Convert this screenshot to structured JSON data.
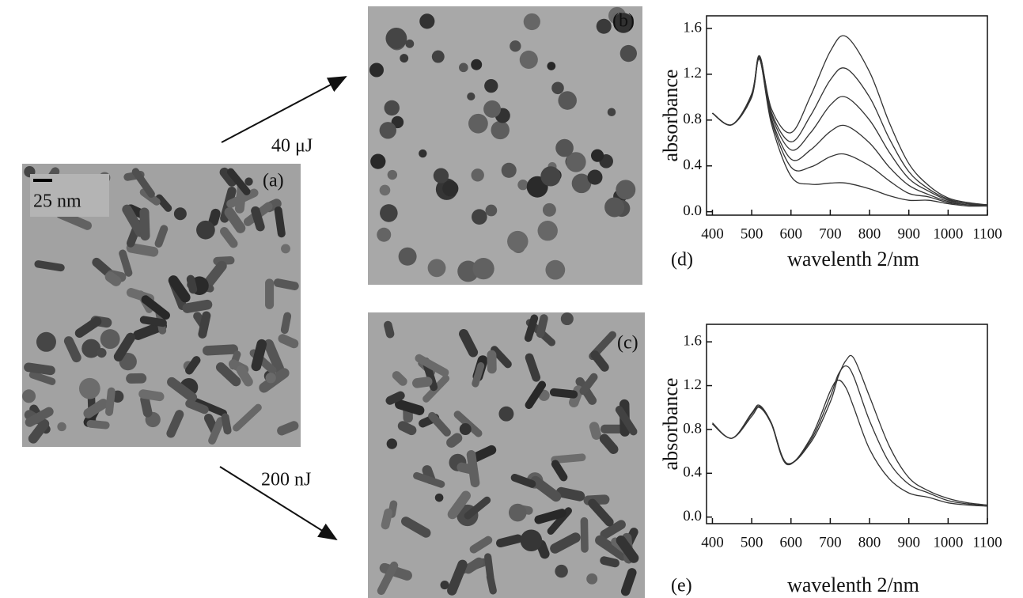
{
  "panels": {
    "a": {
      "label": "(a)",
      "scale_bar": "25 nm"
    },
    "b": {
      "label": "(b)"
    },
    "c": {
      "label": "(c)"
    }
  },
  "arrows": [
    {
      "label": "40 μJ"
    },
    {
      "label": "200 nJ"
    }
  ],
  "chart_data": [
    {
      "type": "line",
      "label": "(d)",
      "x_label": "wavelenth 2/nm",
      "y_label": "absorbance",
      "x": [
        400,
        450,
        500,
        520,
        550,
        600,
        650,
        700,
        740,
        800,
        850,
        900,
        950,
        1000,
        1050,
        1100
      ],
      "series": [
        {
          "color": "#333333",
          "values": [
            0.86,
            0.76,
            1.03,
            1.36,
            0.9,
            0.69,
            1.01,
            1.4,
            1.53,
            1.22,
            0.78,
            0.42,
            0.23,
            0.12,
            0.08,
            0.06
          ]
        },
        {
          "color": "#333333",
          "values": [
            0.86,
            0.76,
            1.02,
            1.36,
            0.87,
            0.61,
            0.84,
            1.15,
            1.25,
            1.0,
            0.64,
            0.35,
            0.2,
            0.11,
            0.07,
            0.06
          ]
        },
        {
          "color": "#333333",
          "values": [
            0.86,
            0.76,
            1.02,
            1.35,
            0.85,
            0.54,
            0.69,
            0.93,
            1.0,
            0.8,
            0.52,
            0.29,
            0.18,
            0.1,
            0.07,
            0.06
          ]
        },
        {
          "color": "#333333",
          "values": [
            0.86,
            0.76,
            1.01,
            1.34,
            0.82,
            0.46,
            0.54,
            0.7,
            0.75,
            0.6,
            0.39,
            0.23,
            0.15,
            0.09,
            0.06,
            0.06
          ]
        },
        {
          "color": "#333333",
          "values": [
            0.86,
            0.76,
            1.01,
            1.33,
            0.8,
            0.39,
            0.39,
            0.48,
            0.5,
            0.4,
            0.27,
            0.16,
            0.13,
            0.08,
            0.06,
            0.05
          ]
        },
        {
          "color": "#333333",
          "values": [
            0.86,
            0.76,
            1.0,
            1.33,
            0.77,
            0.31,
            0.24,
            0.25,
            0.25,
            0.2,
            0.14,
            0.1,
            0.1,
            0.07,
            0.05,
            0.05
          ]
        }
      ],
      "xlim": [
        385,
        1100
      ],
      "ylim": [
        -0.03,
        1.71
      ],
      "xticks": [
        400,
        500,
        600,
        700,
        800,
        900,
        1000,
        1100
      ],
      "yticks": [
        {
          "value": 0,
          "label": "0.0"
        },
        0.4,
        0.8,
        1.2,
        1.6
      ]
    },
    {
      "type": "line",
      "label": "(e)",
      "x_label": "wavelenth 2/nm",
      "y_label": "absorbance",
      "x": [
        400,
        450,
        500,
        520,
        550,
        590,
        650,
        700,
        720,
        740,
        760,
        800,
        850,
        900,
        950,
        1000,
        1050,
        1100
      ],
      "series": [
        {
          "color": "#333333",
          "values": [
            0.85,
            0.72,
            0.92,
            1.0,
            0.85,
            0.48,
            0.72,
            1.15,
            1.25,
            1.18,
            1.0,
            0.62,
            0.35,
            0.22,
            0.18,
            0.13,
            0.11,
            0.1
          ]
        },
        {
          "color": "#333333",
          "values": [
            0.85,
            0.72,
            0.94,
            1.01,
            0.86,
            0.49,
            0.7,
            1.1,
            1.3,
            1.38,
            1.28,
            0.88,
            0.5,
            0.3,
            0.22,
            0.15,
            0.12,
            0.1
          ]
        },
        {
          "color": "#333333",
          "values": [
            0.86,
            0.72,
            0.95,
            1.02,
            0.86,
            0.49,
            0.68,
            1.05,
            1.28,
            1.43,
            1.45,
            1.1,
            0.65,
            0.36,
            0.24,
            0.17,
            0.13,
            0.11
          ]
        }
      ],
      "xlim": [
        385,
        1100
      ],
      "ylim": [
        -0.06,
        1.76
      ],
      "xticks": [
        400,
        500,
        600,
        700,
        800,
        900,
        1000,
        1100
      ],
      "yticks": [
        {
          "value": 0,
          "label": "0.0"
        },
        0.4,
        0.8,
        1.2,
        1.6
      ]
    }
  ]
}
